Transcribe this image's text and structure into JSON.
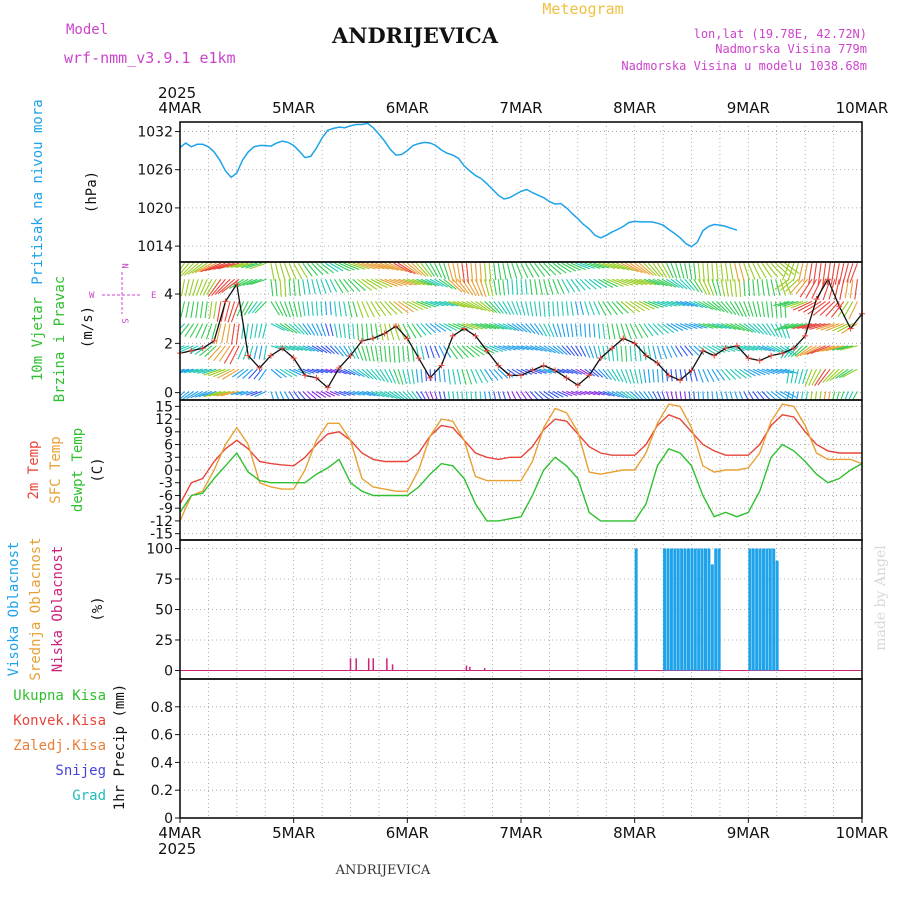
{
  "header": {
    "model_label": "Model",
    "model_name": "wrf-nmm_v3.9.1 e1km",
    "station": "ANDRIJEVICA",
    "meteogram_label": "Meteogram",
    "lonlat": "lon,lat (19.78E, 42.72N)",
    "altitude": "Nadmorska Visina 779m",
    "model_altitude": "Nadmorska Visina u modelu 1038.68m",
    "footer_station": "ANDRIJEVICA",
    "credit": "made by Angel"
  },
  "time_axis": {
    "year": "2025",
    "labels": [
      "4MAR",
      "5MAR",
      "6MAR",
      "7MAR",
      "8MAR",
      "9MAR",
      "10MAR"
    ]
  },
  "colors": {
    "pressure": "#1ea3ea",
    "temp2m": "#e8453a",
    "sfc": "#e8a034",
    "dewpt": "#2ec02e",
    "cloud_high": "#1ea3ea",
    "cloud_mid": "#e8a034",
    "cloud_low": "#cc2277",
    "wind_axis": "#cc44cc",
    "precip_total": "#2ec02e",
    "precip_conv": "#e8453a",
    "precip_freez": "#e8803a",
    "precip_snow": "#4444dd",
    "precip_grad": "#22bbbb"
  },
  "chart_data": [
    {
      "type": "line",
      "panel": "pressure",
      "ylabel_title": "Pritisak na nivou mora",
      "ylabel_unit": "(hPa)",
      "yticks": [
        "1032",
        "1026",
        "1020",
        "1014"
      ],
      "ylim": [
        1011.5,
        1033.5
      ],
      "x_days": [
        0,
        0.05,
        0.1,
        0.15,
        0.2,
        0.25,
        0.3,
        0.35,
        0.4,
        0.45,
        0.5,
        0.55,
        0.6,
        0.65,
        0.7,
        0.75,
        0.8,
        0.85,
        0.9,
        0.95,
        1.0,
        1.05,
        1.1,
        1.15,
        1.2,
        1.25,
        1.3,
        1.35,
        1.4,
        1.45,
        1.5,
        1.55,
        1.6,
        1.65,
        1.7,
        1.75,
        1.8,
        1.85,
        1.9,
        1.95,
        2.0,
        2.05,
        2.1,
        2.15,
        2.2,
        2.25,
        2.3,
        2.35,
        2.4,
        2.45,
        2.5,
        2.55,
        2.6,
        2.65,
        2.7,
        2.75,
        2.8,
        2.85,
        2.9,
        2.95,
        3.0,
        3.05,
        3.1,
        3.15,
        3.2,
        3.25,
        3.3,
        3.35,
        3.4,
        3.45,
        3.5,
        3.55,
        3.6,
        3.65,
        3.7,
        3.75,
        3.8,
        3.85,
        3.9,
        3.95,
        4.0,
        4.05,
        4.1,
        4.15,
        4.2,
        4.25,
        4.3,
        4.35,
        4.4,
        4.45,
        4.5,
        4.55,
        4.6,
        4.65,
        4.7,
        4.75,
        4.8,
        4.85,
        4.9,
        4.95,
        5.0,
        5.05,
        5.1,
        5.15,
        5.2,
        5.25,
        5.3,
        5.35,
        5.4,
        5.45,
        5.5,
        5.55,
        5.6,
        5.65,
        5.7,
        5.75,
        5.8,
        5.85,
        5.9,
        5.95,
        6.0
      ],
      "series": [
        {
          "values": [
            1029.5,
            1030.2,
            1029.6,
            1030,
            1030,
            1029.6,
            1028.8,
            1027.5,
            1025.8,
            1024.8,
            1025.5,
            1027.5,
            1028.8,
            1029.6,
            1029.8,
            1029.8,
            1029.7,
            1030.2,
            1030.5,
            1030.3,
            1029.8,
            1028.9,
            1027.9,
            1028.1,
            1029.4,
            1031,
            1032.2,
            1032.5,
            1032.7,
            1032.6,
            1032.9,
            1033.1,
            1033.1,
            1033.3,
            1032.6,
            1031.6,
            1030.5,
            1029.2,
            1028.3,
            1028.4,
            1029,
            1029.8,
            1030.1,
            1030.3,
            1030.2,
            1029.8,
            1029.1,
            1028.6,
            1028.3,
            1027.8,
            1026.6,
            1025.8,
            1025.1,
            1024.6,
            1023.8,
            1022.9,
            1022,
            1021.4,
            1021.6,
            1022.1,
            1022.6,
            1022.9,
            1022.4,
            1022,
            1021.6,
            1021,
            1020.6,
            1020.7,
            1020,
            1019.1,
            1018.3,
            1017.4,
            1016.7,
            1015.7,
            1015.3,
            1015.7,
            1016.2,
            1016.6,
            1017.1,
            1017.7,
            1017.9,
            1017.8,
            1017.8,
            1017.8,
            1017.6,
            1017.3,
            1016.6,
            1016,
            1015.3,
            1014.4,
            1013.9,
            1014.6,
            1016.4,
            1017.1,
            1017.4,
            1017.3,
            1017.1,
            1016.8,
            1016.5
          ]
        }
      ]
    },
    {
      "type": "line",
      "panel": "wind",
      "ylabel_title": "10m Vjetar",
      "ylabel_title2": "Brzina i Pravac",
      "ylabel_unit": "(m/s)",
      "compass": {
        "n": "N",
        "s": "S",
        "w": "W",
        "e": "E"
      },
      "yticks": [
        "4",
        "2",
        "0"
      ],
      "ylim": [
        -0.3,
        5.3
      ],
      "x_days": [
        0,
        0.1,
        0.2,
        0.3,
        0.4,
        0.5,
        0.6,
        0.7,
        0.8,
        0.9,
        1.0,
        1.1,
        1.2,
        1.3,
        1.4,
        1.5,
        1.6,
        1.7,
        1.8,
        1.9,
        2.0,
        2.1,
        2.2,
        2.3,
        2.4,
        2.5,
        2.6,
        2.7,
        2.8,
        2.9,
        3.0,
        3.1,
        3.2,
        3.3,
        3.4,
        3.5,
        3.6,
        3.7,
        3.8,
        3.9,
        4.0,
        4.1,
        4.2,
        4.3,
        4.4,
        4.5,
        4.6,
        4.7,
        4.8,
        4.9,
        5.0,
        5.1,
        5.2,
        5.3,
        5.4,
        5.5,
        5.6,
        5.7,
        5.8,
        5.9,
        6.0
      ],
      "series": [
        {
          "values": [
            1.6,
            1.7,
            1.8,
            2.1,
            3.7,
            4.4,
            1.5,
            1,
            1.5,
            1.8,
            1.4,
            0.7,
            0.6,
            0.2,
            1,
            1.5,
            2.1,
            2.2,
            2.4,
            2.7,
            2.2,
            1.4,
            0.6,
            1.1,
            2.3,
            2.6,
            2.3,
            1.7,
            1.1,
            0.7,
            0.7,
            0.9,
            1.1,
            0.9,
            0.6,
            0.3,
            0.7,
            1.4,
            1.8,
            2.2,
            2,
            1.5,
            1.2,
            0.7,
            0.5,
            0.9,
            1.7,
            1.5,
            1.8,
            1.9,
            1.4,
            1.3,
            1.5,
            1.6,
            1.8,
            2.3,
            3.8,
            4.6,
            3.5,
            2.6,
            3.2
          ]
        }
      ]
    },
    {
      "type": "line",
      "panel": "temperature",
      "ylabel_t2m": "2m Temp",
      "ylabel_sfc": "SFC Temp",
      "ylabel_dew": "dewpt Temp",
      "ylabel_unit": "(C)",
      "yticks": [
        "15",
        "12",
        "9",
        "6",
        "3",
        "0",
        "-3",
        "-6",
        "-9",
        "-12",
        "-15"
      ],
      "ylim": [
        -16.5,
        16.5
      ],
      "x_days": [
        0,
        0.1,
        0.2,
        0.3,
        0.4,
        0.5,
        0.6,
        0.7,
        0.8,
        0.9,
        1.0,
        1.1,
        1.2,
        1.3,
        1.4,
        1.5,
        1.6,
        1.7,
        1.8,
        1.9,
        2.0,
        2.1,
        2.2,
        2.3,
        2.4,
        2.5,
        2.6,
        2.7,
        2.8,
        2.9,
        3.0,
        3.1,
        3.2,
        3.3,
        3.4,
        3.5,
        3.6,
        3.7,
        3.8,
        3.9,
        4.0,
        4.1,
        4.2,
        4.3,
        4.4,
        4.5,
        4.6,
        4.7,
        4.8,
        4.9,
        5.0,
        5.1,
        5.2,
        5.3,
        5.4,
        5.5,
        5.6,
        5.7,
        5.8,
        5.9,
        6.0
      ],
      "series": [
        {
          "name": "2m Temp",
          "values": [
            -8,
            -3,
            -2,
            2,
            5,
            7,
            5,
            2,
            1.5,
            1.2,
            1,
            3,
            6,
            8.5,
            9,
            7,
            4,
            2.5,
            2,
            2,
            2,
            4,
            8,
            10.5,
            10,
            7,
            4,
            3,
            2.5,
            3,
            3,
            5.5,
            9.5,
            12,
            11.5,
            8.5,
            5.5,
            4,
            3.5,
            3.5,
            3.5,
            6,
            10.5,
            13,
            12,
            9,
            6,
            4.5,
            3.5,
            3.5,
            3.5,
            6,
            10.5,
            13,
            12.5,
            9,
            6,
            4.5,
            4,
            4,
            4
          ]
        },
        {
          "name": "SFC Temp",
          "values": [
            -12,
            -6,
            -5,
            0,
            6,
            10,
            6,
            -3,
            -4,
            -4.5,
            -4.5,
            0,
            7,
            11,
            11,
            7,
            -2,
            -4,
            -4.5,
            -5,
            -5,
            0,
            8,
            12,
            11.5,
            7,
            -1.5,
            -2.5,
            -2.5,
            -2.5,
            -2.5,
            2,
            10,
            14.5,
            13.5,
            9,
            -0.5,
            -1,
            -0.5,
            0,
            0,
            4,
            11,
            15.5,
            15,
            10,
            1,
            -0.5,
            0,
            0,
            0.5,
            4,
            11.5,
            15.5,
            15,
            10.5,
            4,
            2.5,
            2.5,
            2.5,
            1.5
          ]
        },
        {
          "name": "dewpt Temp",
          "values": [
            -10,
            -6,
            -5.5,
            -2,
            1,
            4,
            -0.5,
            -2.5,
            -3,
            -3,
            -3,
            -3,
            -1,
            0.5,
            2.5,
            -3,
            -5,
            -6,
            -6,
            -6,
            -6,
            -4,
            -1,
            1.5,
            1,
            -2,
            -8,
            -12,
            -12,
            -11.5,
            -11,
            -6,
            0,
            3,
            1,
            -2,
            -10,
            -12,
            -12,
            -12,
            -12,
            -8,
            1,
            5,
            4,
            1,
            -6,
            -11,
            -10,
            -11,
            -10,
            -5,
            3,
            6,
            4.5,
            2,
            -1,
            -3,
            -2,
            0,
            1.5
          ]
        }
      ]
    },
    {
      "type": "bar",
      "panel": "clouds",
      "ylabel_high": "Visoka Oblacnost",
      "ylabel_mid": "Srednja Oblacnost",
      "ylabel_low": "Niska Oblacnost",
      "ylabel_unit": "(%)",
      "yticks": [
        "100",
        "75",
        "50",
        "25",
        "0"
      ],
      "ylim": [
        -7,
        107
      ],
      "series": [
        {
          "name": "Niska Oblacnost",
          "x_days": [
            1.5,
            1.55,
            1.66,
            1.7,
            1.82,
            1.87,
            2.52,
            2.55,
            2.68
          ],
          "values": [
            10,
            10,
            10,
            10,
            10,
            5,
            4,
            3,
            2
          ]
        },
        {
          "name": "Visoka Oblacnost",
          "x_days": [
            4.0,
            4.25,
            4.28,
            4.31,
            4.34,
            4.37,
            4.4,
            4.43,
            4.46,
            4.49,
            4.52,
            4.55,
            4.58,
            4.61,
            4.64,
            4.67,
            4.7,
            4.73,
            5.0,
            5.03,
            5.06,
            5.09,
            5.12,
            5.15,
            5.18,
            5.21,
            5.24
          ],
          "values": [
            100,
            100,
            100,
            100,
            100,
            100,
            100,
            100,
            100,
            100,
            100,
            100,
            100,
            100,
            100,
            87,
            100,
            100,
            100,
            100,
            100,
            100,
            100,
            100,
            100,
            100,
            90
          ]
        }
      ]
    },
    {
      "type": "bar",
      "panel": "precipitation",
      "ylabel_total": "Ukupna Kisa",
      "ylabel_conv": "Konvek.Kisa",
      "ylabel_freez": "Zaledj.Kisa",
      "ylabel_snow": "Snijeg",
      "ylabel_grad": "Grad",
      "ylabel_unit": "1hr Precip (mm)",
      "yticks": [
        "0.8",
        "0.6",
        "0.4",
        "0.2",
        "0"
      ],
      "ylim": [
        0,
        1.0
      ],
      "values": []
    }
  ]
}
